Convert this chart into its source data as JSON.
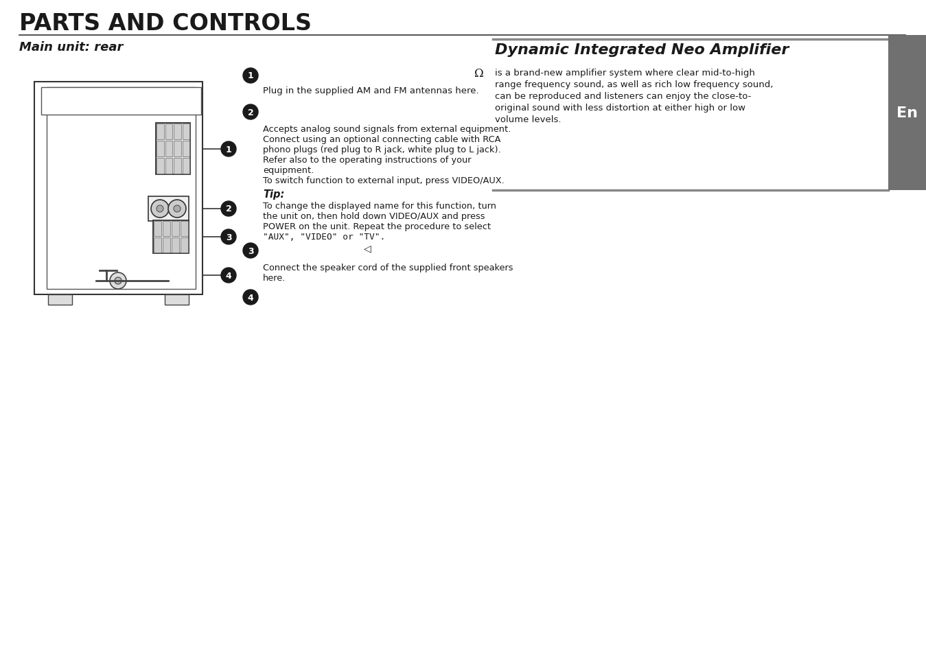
{
  "title": "PARTS AND CONTROLS",
  "subtitle": "Main unit: rear",
  "dina_title": "Dynamic Integrated Neo Amplifier",
  "dina_body": "is a brand-new amplifier system where clear mid-to-high\nrange frequency sound, as well as rich low frequency sound,\ncan be reproduced and listeners can enjoy the close-to-\noriginal sound with less distortion at either high or low\nvolume levels.",
  "en_label": "En",
  "item1_text": "Plug in the supplied AM and FM antennas here.",
  "item2_text": "Accepts analog sound signals from external equipment.\nConnect using an optional connecting cable with RCA\nphono plugs (red plug to R jack, white plug to L jack).\nRefer also to the operating instructions of your\nequipment.\nTo switch function to external input, press VIDEO/AUX.",
  "tip_label": "Tip:",
  "tip_text": "To change the displayed name for this function, turn\nthe unit on, then hold down VIDEO/AUX and press\nPOWER on the unit. Repeat the procedure to select\n\"AUX\", \"VIDEO\" or \"TV\".",
  "item3_text": "Connect the speaker cord of the supplied front speakers\nhere.",
  "bg_color": "#ffffff",
  "text_color": "#1a1a1a",
  "line_color": "#555555",
  "en_bg_color": "#707070"
}
